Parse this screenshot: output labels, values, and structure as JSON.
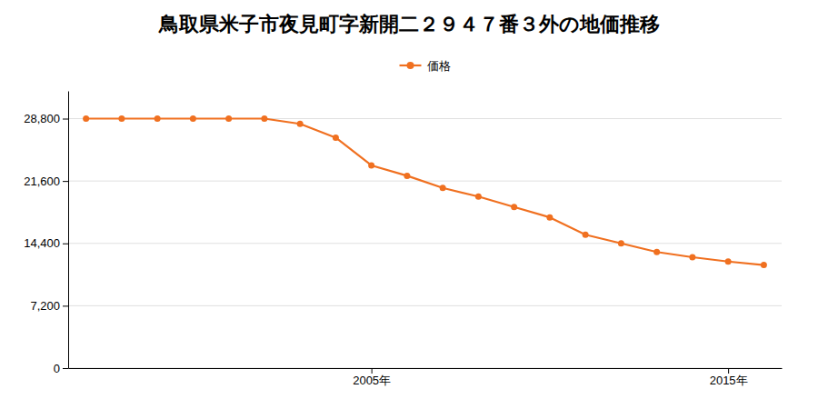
{
  "chart_data": {
    "type": "line",
    "title": "鳥取県米子市夜見町字新開二２９４７番３外の地価推移",
    "x": [
      1997,
      1998,
      1999,
      2000,
      2001,
      2002,
      2003,
      2004,
      2005,
      2006,
      2007,
      2008,
      2009,
      2010,
      2011,
      2012,
      2013,
      2014,
      2015,
      2016
    ],
    "series": [
      {
        "name": "価格",
        "color": "#f07020",
        "marker": "circle",
        "values": [
          28800,
          28800,
          28800,
          28800,
          28800,
          28800,
          28200,
          26600,
          23400,
          22200,
          20800,
          19800,
          18600,
          17400,
          15400,
          14400,
          13400,
          12800,
          12300,
          11900
        ]
      }
    ],
    "xlim": [
      1996.5,
      2016.5
    ],
    "xticks": [
      {
        "value": 2005,
        "label": "2005年"
      },
      {
        "value": 2015,
        "label": "2015年"
      }
    ],
    "ylim": [
      0,
      32000
    ],
    "yticks": [
      0,
      {
        "value": 7200,
        "label": "7,200"
      },
      {
        "value": 14400,
        "label": "14,400"
      },
      {
        "value": 21600,
        "label": "21,600"
      },
      {
        "value": 28800,
        "label": "28,800"
      }
    ],
    "grid": true,
    "legend": "top"
  }
}
